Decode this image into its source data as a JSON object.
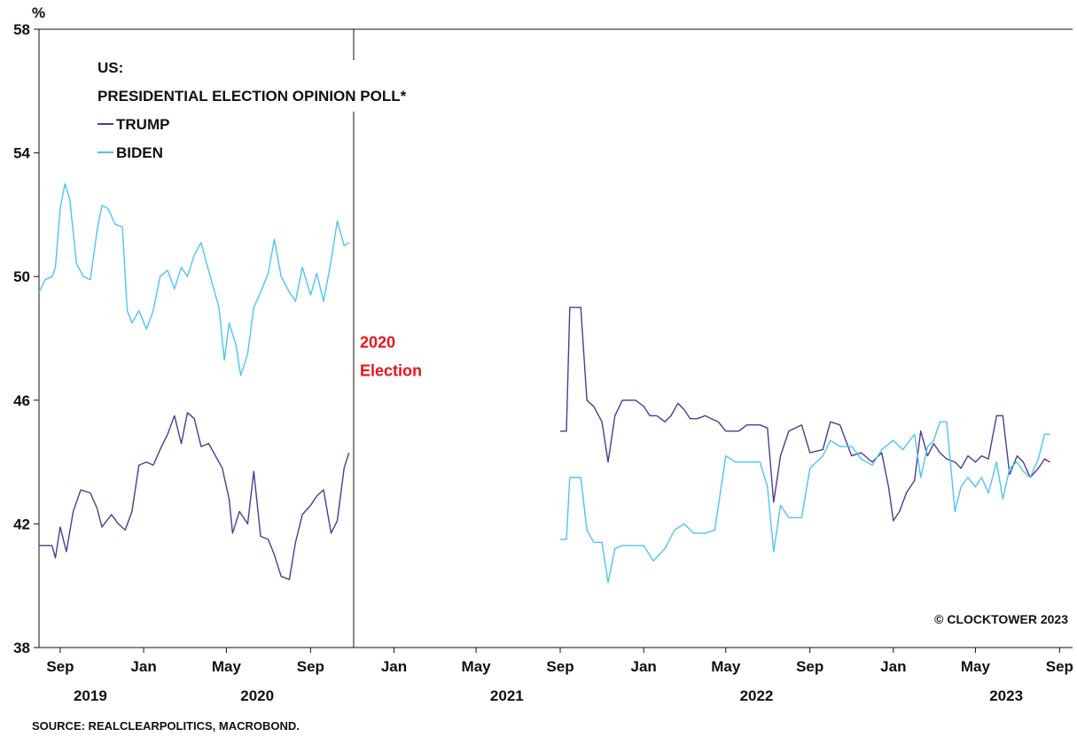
{
  "colors": {
    "trump": "#4b3d8f",
    "biden": "#4fc3f7",
    "annotation": "#e8141b",
    "axis": "#111111"
  },
  "chart_data": {
    "type": "line",
    "title": "US:",
    "subtitle": "PRESIDENTIAL ELECTION OPINION POLL*",
    "ylabel": "%",
    "ylim": [
      38,
      58
    ],
    "yticks": [
      38,
      42,
      46,
      50,
      54,
      58
    ],
    "xlim": [
      "2019-08-01",
      "2023-09-20"
    ],
    "xticks": [
      {
        "date": "2019-09-01",
        "label": "Sep"
      },
      {
        "date": "2020-01-01",
        "label": "Jan"
      },
      {
        "date": "2020-05-01",
        "label": "May"
      },
      {
        "date": "2020-09-01",
        "label": "Sep"
      },
      {
        "date": "2021-01-01",
        "label": "Jan"
      },
      {
        "date": "2021-05-01",
        "label": "May"
      },
      {
        "date": "2021-09-01",
        "label": "Sep"
      },
      {
        "date": "2022-01-01",
        "label": "Jan"
      },
      {
        "date": "2022-05-01",
        "label": "May"
      },
      {
        "date": "2022-09-01",
        "label": "Sep"
      },
      {
        "date": "2023-01-01",
        "label": "Jan"
      },
      {
        "date": "2023-05-01",
        "label": "May"
      },
      {
        "date": "2023-09-01",
        "label": "Sep"
      }
    ],
    "year_labels": [
      {
        "date": "2019-10-15",
        "label": "2019"
      },
      {
        "date": "2020-06-15",
        "label": "2020"
      },
      {
        "date": "2021-06-15",
        "label": "2021"
      },
      {
        "date": "2022-06-15",
        "label": "2022"
      },
      {
        "date": "2023-06-15",
        "label": "2023"
      }
    ],
    "annotation": {
      "date": "2020-11-03",
      "label_line1": "2020",
      "label_line2": "Election",
      "y": 47.7
    },
    "series": [
      {
        "name": "TRUMP",
        "color": "#4b3d8f",
        "segments": [
          [
            [
              "2019-08-01",
              41.3
            ],
            [
              "2019-08-20",
              41.3
            ],
            [
              "2019-08-25",
              40.9
            ],
            [
              "2019-09-01",
              41.9
            ],
            [
              "2019-09-10",
              41.1
            ],
            [
              "2019-09-20",
              42.4
            ],
            [
              "2019-10-01",
              43.1
            ],
            [
              "2019-10-15",
              43.0
            ],
            [
              "2019-10-25",
              42.5
            ],
            [
              "2019-11-01",
              41.9
            ],
            [
              "2019-11-15",
              42.3
            ],
            [
              "2019-11-25",
              42.0
            ],
            [
              "2019-12-05",
              41.8
            ],
            [
              "2019-12-15",
              42.4
            ],
            [
              "2019-12-25",
              43.9
            ],
            [
              "2020-01-05",
              44.0
            ],
            [
              "2020-01-15",
              43.9
            ],
            [
              "2020-01-25",
              44.4
            ],
            [
              "2020-02-05",
              44.9
            ],
            [
              "2020-02-15",
              45.5
            ],
            [
              "2020-02-25",
              44.6
            ],
            [
              "2020-03-05",
              45.6
            ],
            [
              "2020-03-15",
              45.4
            ],
            [
              "2020-03-25",
              44.5
            ],
            [
              "2020-04-05",
              44.6
            ],
            [
              "2020-04-15",
              44.2
            ],
            [
              "2020-04-25",
              43.8
            ],
            [
              "2020-05-05",
              42.8
            ],
            [
              "2020-05-10",
              41.7
            ],
            [
              "2020-05-20",
              42.4
            ],
            [
              "2020-06-01",
              42.0
            ],
            [
              "2020-06-10",
              43.7
            ],
            [
              "2020-06-20",
              41.6
            ],
            [
              "2020-07-01",
              41.5
            ],
            [
              "2020-07-10",
              41.0
            ],
            [
              "2020-07-20",
              40.3
            ],
            [
              "2020-08-01",
              40.2
            ],
            [
              "2020-08-10",
              41.4
            ],
            [
              "2020-08-20",
              42.3
            ],
            [
              "2020-09-01",
              42.6
            ],
            [
              "2020-09-10",
              42.9
            ],
            [
              "2020-09-20",
              43.1
            ],
            [
              "2020-10-01",
              41.7
            ],
            [
              "2020-10-10",
              42.1
            ],
            [
              "2020-10-20",
              43.8
            ],
            [
              "2020-10-27",
              44.3
            ]
          ],
          [
            [
              "2021-09-01",
              45.0
            ],
            [
              "2021-09-10",
              45.0
            ],
            [
              "2021-09-15",
              49.0
            ],
            [
              "2021-09-25",
              49.0
            ],
            [
              "2021-10-01",
              49.0
            ],
            [
              "2021-10-10",
              46.0
            ],
            [
              "2021-10-20",
              45.8
            ],
            [
              "2021-11-01",
              45.3
            ],
            [
              "2021-11-10",
              44.0
            ],
            [
              "2021-11-20",
              45.5
            ],
            [
              "2021-12-01",
              46.0
            ],
            [
              "2021-12-20",
              46.0
            ],
            [
              "2022-01-01",
              45.8
            ],
            [
              "2022-01-10",
              45.5
            ],
            [
              "2022-01-20",
              45.5
            ],
            [
              "2022-02-01",
              45.3
            ],
            [
              "2022-02-10",
              45.5
            ],
            [
              "2022-02-20",
              45.9
            ],
            [
              "2022-03-01",
              45.7
            ],
            [
              "2022-03-10",
              45.4
            ],
            [
              "2022-03-20",
              45.4
            ],
            [
              "2022-04-01",
              45.5
            ],
            [
              "2022-04-10",
              45.4
            ],
            [
              "2022-04-20",
              45.3
            ],
            [
              "2022-05-01",
              45.0
            ],
            [
              "2022-05-20",
              45.0
            ],
            [
              "2022-06-01",
              45.2
            ],
            [
              "2022-06-20",
              45.2
            ],
            [
              "2022-07-01",
              45.1
            ],
            [
              "2022-07-10",
              42.7
            ],
            [
              "2022-07-20",
              44.2
            ],
            [
              "2022-08-01",
              45.0
            ],
            [
              "2022-08-20",
              45.2
            ],
            [
              "2022-09-01",
              44.3
            ],
            [
              "2022-09-20",
              44.4
            ],
            [
              "2022-10-01",
              45.3
            ],
            [
              "2022-10-15",
              45.2
            ],
            [
              "2022-11-01",
              44.2
            ],
            [
              "2022-11-15",
              44.3
            ],
            [
              "2022-12-01",
              44.0
            ],
            [
              "2022-12-15",
              44.3
            ],
            [
              "2022-12-25",
              43.2
            ],
            [
              "2023-01-01",
              42.1
            ],
            [
              "2023-01-10",
              42.4
            ],
            [
              "2023-01-20",
              43.0
            ],
            [
              "2023-02-01",
              43.4
            ],
            [
              "2023-02-10",
              45.0
            ],
            [
              "2023-02-20",
              44.2
            ],
            [
              "2023-03-01",
              44.6
            ],
            [
              "2023-03-10",
              44.3
            ],
            [
              "2023-03-20",
              44.1
            ],
            [
              "2023-04-01",
              44.0
            ],
            [
              "2023-04-10",
              43.8
            ],
            [
              "2023-04-20",
              44.2
            ],
            [
              "2023-05-01",
              44.0
            ],
            [
              "2023-05-10",
              44.2
            ],
            [
              "2023-05-20",
              44.1
            ],
            [
              "2023-06-01",
              45.5
            ],
            [
              "2023-06-10",
              45.5
            ],
            [
              "2023-06-20",
              43.6
            ],
            [
              "2023-07-01",
              44.2
            ],
            [
              "2023-07-10",
              44.0
            ],
            [
              "2023-07-20",
              43.5
            ],
            [
              "2023-08-01",
              43.8
            ],
            [
              "2023-08-10",
              44.1
            ],
            [
              "2023-08-18",
              44.0
            ]
          ]
        ]
      },
      {
        "name": "BIDEN",
        "color": "#4fc3f7",
        "segments": [
          [
            [
              "2019-08-01",
              49.5
            ],
            [
              "2019-08-10",
              49.9
            ],
            [
              "2019-08-20",
              50.0
            ],
            [
              "2019-08-25",
              50.3
            ],
            [
              "2019-09-01",
              52.2
            ],
            [
              "2019-09-08",
              53.0
            ],
            [
              "2019-09-15",
              52.5
            ],
            [
              "2019-09-25",
              50.4
            ],
            [
              "2019-10-05",
              50.0
            ],
            [
              "2019-10-15",
              49.9
            ],
            [
              "2019-10-25",
              51.5
            ],
            [
              "2019-11-01",
              52.3
            ],
            [
              "2019-11-10",
              52.2
            ],
            [
              "2019-11-20",
              51.7
            ],
            [
              "2019-12-01",
              51.6
            ],
            [
              "2019-12-08",
              48.9
            ],
            [
              "2019-12-15",
              48.5
            ],
            [
              "2019-12-25",
              48.9
            ],
            [
              "2020-01-05",
              48.3
            ],
            [
              "2020-01-15",
              48.9
            ],
            [
              "2020-01-25",
              50.0
            ],
            [
              "2020-02-05",
              50.2
            ],
            [
              "2020-02-15",
              49.6
            ],
            [
              "2020-02-25",
              50.3
            ],
            [
              "2020-03-05",
              50.0
            ],
            [
              "2020-03-15",
              50.7
            ],
            [
              "2020-03-25",
              51.1
            ],
            [
              "2020-04-01",
              50.5
            ],
            [
              "2020-04-10",
              49.8
            ],
            [
              "2020-04-20",
              49.0
            ],
            [
              "2020-04-28",
              47.3
            ],
            [
              "2020-05-05",
              48.5
            ],
            [
              "2020-05-15",
              47.8
            ],
            [
              "2020-05-22",
              46.8
            ],
            [
              "2020-06-01",
              47.5
            ],
            [
              "2020-06-10",
              49.0
            ],
            [
              "2020-06-20",
              49.5
            ],
            [
              "2020-07-01",
              50.1
            ],
            [
              "2020-07-10",
              51.2
            ],
            [
              "2020-07-20",
              50.0
            ],
            [
              "2020-08-01",
              49.5
            ],
            [
              "2020-08-10",
              49.2
            ],
            [
              "2020-08-20",
              50.3
            ],
            [
              "2020-09-01",
              49.4
            ],
            [
              "2020-09-10",
              50.1
            ],
            [
              "2020-09-20",
              49.2
            ],
            [
              "2020-10-01",
              50.5
            ],
            [
              "2020-10-10",
              51.8
            ],
            [
              "2020-10-20",
              51.0
            ],
            [
              "2020-10-27",
              51.1
            ]
          ],
          [
            [
              "2021-09-01",
              41.5
            ],
            [
              "2021-09-10",
              41.5
            ],
            [
              "2021-09-15",
              43.5
            ],
            [
              "2021-10-01",
              43.5
            ],
            [
              "2021-10-10",
              41.8
            ],
            [
              "2021-10-20",
              41.4
            ],
            [
              "2021-11-01",
              41.4
            ],
            [
              "2021-11-10",
              40.1
            ],
            [
              "2021-11-20",
              41.2
            ],
            [
              "2021-12-01",
              41.3
            ],
            [
              "2021-12-20",
              41.3
            ],
            [
              "2022-01-01",
              41.3
            ],
            [
              "2022-01-15",
              40.8
            ],
            [
              "2022-02-01",
              41.2
            ],
            [
              "2022-02-15",
              41.8
            ],
            [
              "2022-03-01",
              42.0
            ],
            [
              "2022-03-15",
              41.7
            ],
            [
              "2022-04-01",
              41.7
            ],
            [
              "2022-04-15",
              41.8
            ],
            [
              "2022-05-01",
              44.2
            ],
            [
              "2022-05-15",
              44.0
            ],
            [
              "2022-06-01",
              44.0
            ],
            [
              "2022-06-20",
              44.0
            ],
            [
              "2022-07-01",
              43.2
            ],
            [
              "2022-07-10",
              41.1
            ],
            [
              "2022-07-20",
              42.6
            ],
            [
              "2022-08-01",
              42.2
            ],
            [
              "2022-08-20",
              42.2
            ],
            [
              "2022-09-01",
              43.8
            ],
            [
              "2022-09-20",
              44.2
            ],
            [
              "2022-10-01",
              44.7
            ],
            [
              "2022-10-15",
              44.5
            ],
            [
              "2022-11-01",
              44.5
            ],
            [
              "2022-11-15",
              44.1
            ],
            [
              "2022-12-01",
              43.9
            ],
            [
              "2022-12-15",
              44.4
            ],
            [
              "2023-01-01",
              44.7
            ],
            [
              "2023-01-15",
              44.4
            ],
            [
              "2023-02-01",
              44.9
            ],
            [
              "2023-02-10",
              43.5
            ],
            [
              "2023-02-20",
              44.5
            ],
            [
              "2023-03-01",
              44.7
            ],
            [
              "2023-03-10",
              45.3
            ],
            [
              "2023-03-20",
              45.3
            ],
            [
              "2023-04-01",
              42.4
            ],
            [
              "2023-04-10",
              43.2
            ],
            [
              "2023-04-20",
              43.5
            ],
            [
              "2023-05-01",
              43.2
            ],
            [
              "2023-05-10",
              43.5
            ],
            [
              "2023-05-20",
              43.0
            ],
            [
              "2023-06-01",
              44.0
            ],
            [
              "2023-06-10",
              42.8
            ],
            [
              "2023-06-20",
              43.8
            ],
            [
              "2023-07-01",
              44.0
            ],
            [
              "2023-07-10",
              43.7
            ],
            [
              "2023-07-20",
              43.5
            ],
            [
              "2023-08-01",
              44.1
            ],
            [
              "2023-08-10",
              44.9
            ],
            [
              "2023-08-18",
              44.9
            ]
          ]
        ]
      }
    ]
  },
  "copyright": "© CLOCKTOWER 2023",
  "source": "SOURCE: REALCLEARPOLITICS, MACROBOND."
}
